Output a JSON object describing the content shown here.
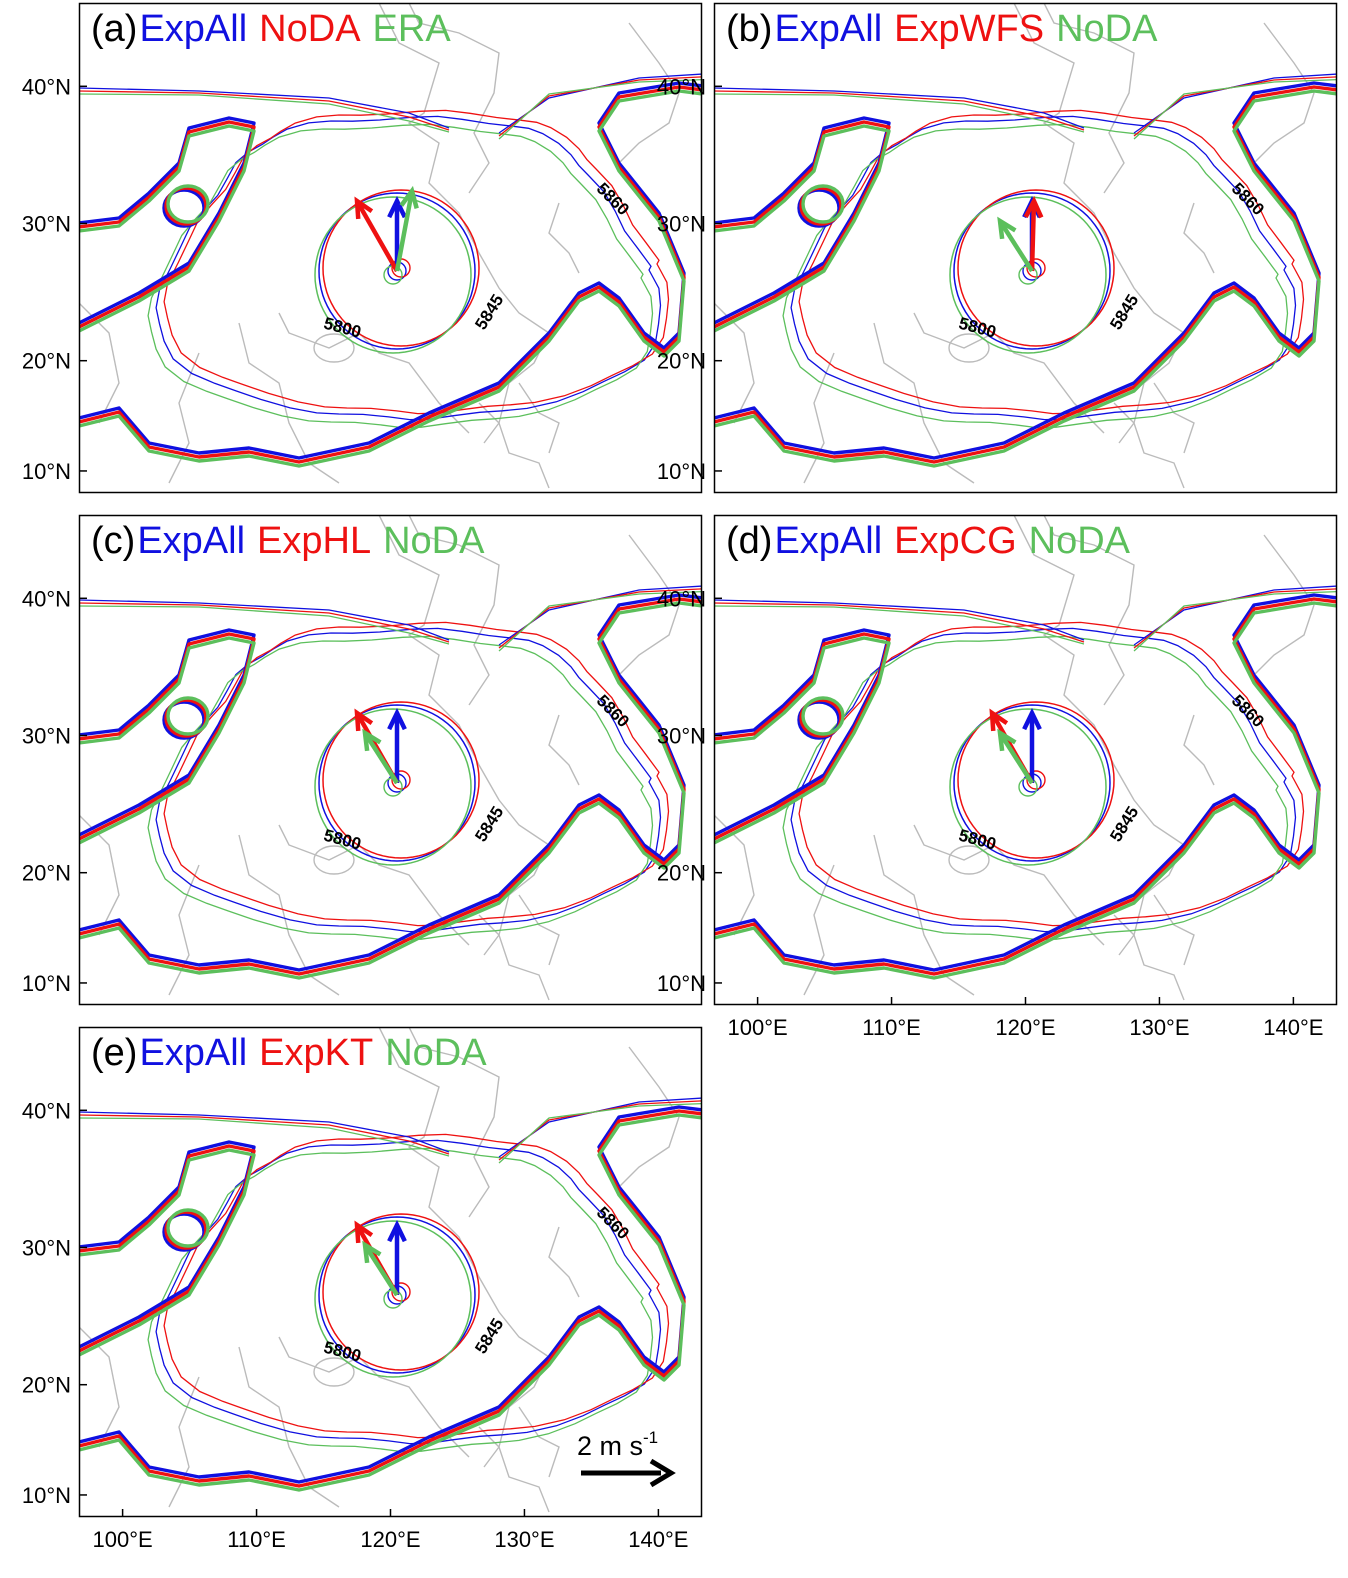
{
  "figure": {
    "lat_ticks": [
      "40°N",
      "30°N",
      "20°N",
      "10°N"
    ],
    "lon_ticks": [
      "100°E",
      "110°E",
      "120°E",
      "130°E",
      "140°E"
    ],
    "colors": {
      "blue": "#1010e0",
      "red": "#ee1111",
      "green": "#5cbf5c",
      "coast": "#bbbbbb"
    },
    "contour_labels": {
      "inner": "5800",
      "middle": "5845",
      "outer": "5860"
    },
    "scale_arrow": {
      "label": "2 m s",
      "exponent": "-1",
      "magnitude": 2,
      "units": "m s-1"
    }
  },
  "panels": [
    {
      "id": "a",
      "tag": "(a)",
      "series": [
        "ExpAll",
        "NoDA",
        "ERA"
      ],
      "show_5860_label": true
    },
    {
      "id": "b",
      "tag": "(b)",
      "series": [
        "ExpAll",
        "ExpWFS",
        "NoDA"
      ],
      "show_5860_label": true
    },
    {
      "id": "c",
      "tag": "(c)",
      "series": [
        "ExpAll",
        "ExpHL",
        "NoDA"
      ],
      "show_5860_label": true
    },
    {
      "id": "d",
      "tag": "(d)",
      "series": [
        "ExpAll",
        "ExpCG",
        "NoDA"
      ],
      "show_5860_label": true
    },
    {
      "id": "e",
      "tag": "(e)",
      "series": [
        "ExpAll",
        "ExpKT",
        "NoDA"
      ],
      "show_5860_label": true
    }
  ]
}
